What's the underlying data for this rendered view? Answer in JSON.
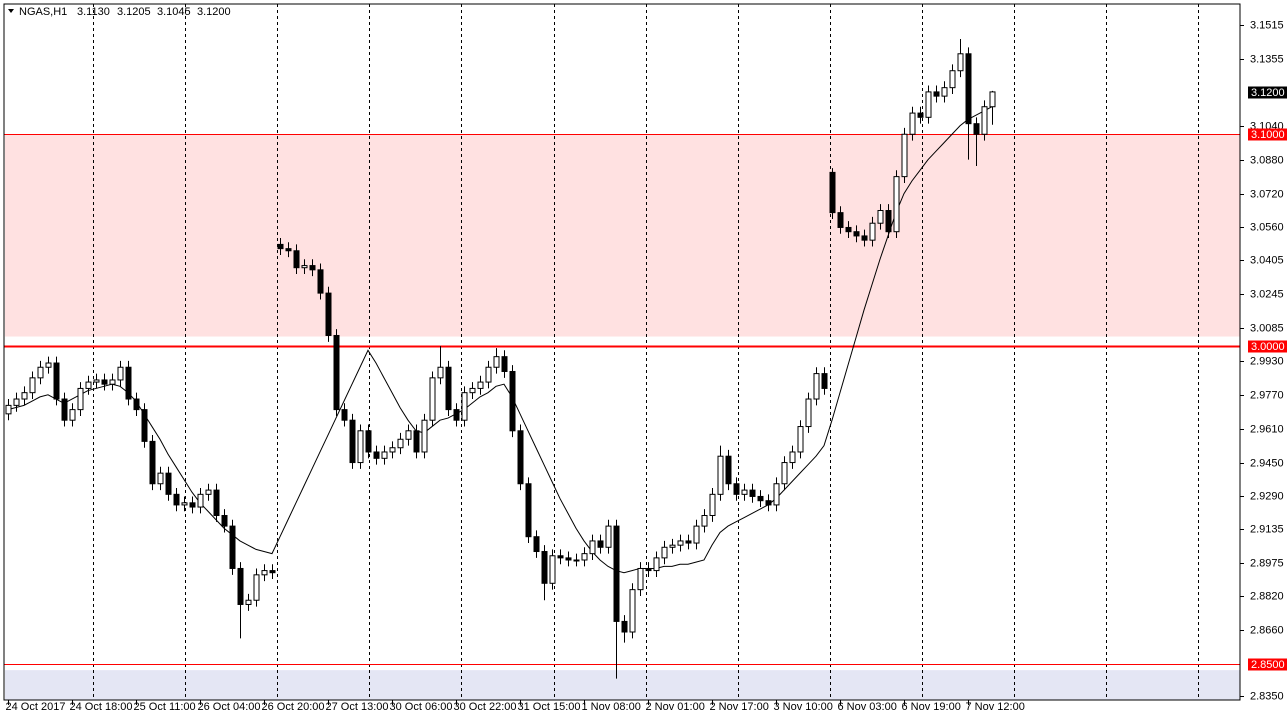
{
  "chart_data": {
    "type": "candlestick",
    "header": {
      "name": "NGAS,H1",
      "values": [
        3.113,
        3.1205,
        3.1045,
        3.12
      ],
      "value_labels": [
        "3.1130",
        "3.1205",
        "3.1045",
        "3.1200"
      ]
    },
    "categories": [
      "24 Oct 2017",
      null,
      null,
      null,
      null,
      null,
      null,
      null,
      "24 Oct 18:00",
      null,
      null,
      null,
      null,
      null,
      null,
      null,
      "25 Oct 11:00",
      null,
      null,
      null,
      null,
      null,
      null,
      null,
      "26 Oct 04:00",
      null,
      null,
      null,
      null,
      null,
      null,
      null,
      "26 Oct 20:00",
      null,
      null,
      null,
      null,
      null,
      null,
      null,
      "27 Oct 13:00",
      null,
      null,
      null,
      null,
      null,
      null,
      null,
      "30 Oct 06:00",
      null,
      null,
      null,
      null,
      null,
      null,
      null,
      "30 Oct 22:00",
      null,
      null,
      null,
      null,
      null,
      null,
      null,
      "31 Oct 15:00",
      null,
      null,
      null,
      null,
      null,
      null,
      null,
      "1 Nov 08:00",
      null,
      null,
      null,
      null,
      null,
      null,
      null,
      "2 Nov 01:00",
      null,
      null,
      null,
      null,
      null,
      null,
      null,
      "2 Nov 17:00",
      null,
      null,
      null,
      null,
      null,
      null,
      null,
      "3 Nov 10:00",
      null,
      null,
      null,
      null,
      null,
      null,
      null,
      "6 Nov 03:00",
      null,
      null,
      null,
      null,
      null,
      null,
      null,
      "6 Nov 19:00",
      null,
      null,
      null,
      null,
      null,
      null,
      null,
      "7 Nov 12:00",
      null,
      null,
      null
    ],
    "open": [
      2.968,
      2.972,
      2.975,
      2.978,
      2.985,
      2.99,
      2.992,
      2.975,
      2.965,
      2.97,
      2.98,
      2.983,
      2.984,
      2.982,
      2.984,
      2.99,
      2.975,
      2.97,
      2.955,
      2.935,
      2.94,
      2.93,
      2.925,
      2.926,
      2.924,
      2.93,
      2.932,
      2.92,
      2.915,
      2.895,
      2.878,
      2.88,
      2.892,
      2.894,
      3.048,
      3.046,
      3.045,
      3.037,
      3.038,
      3.036,
      3.025,
      3.005,
      2.97,
      2.965,
      2.945,
      2.96,
      2.95,
      2.947,
      2.95,
      2.952,
      2.956,
      2.96,
      2.95,
      2.965,
      2.985,
      2.99,
      2.97,
      2.965,
      2.978,
      2.98,
      2.983,
      2.99,
      2.995,
      2.988,
      2.96,
      2.935,
      2.91,
      2.903,
      2.888,
      2.901,
      2.9,
      2.899,
      2.899,
      2.902,
      2.908,
      2.905,
      2.915,
      2.87,
      2.865,
      2.885,
      2.895,
      2.894,
      2.9,
      2.905,
      2.906,
      2.908,
      2.907,
      2.915,
      2.92,
      2.93,
      2.948,
      2.935,
      2.93,
      2.932,
      2.929,
      2.927,
      2.925,
      2.935,
      2.945,
      2.95,
      2.962,
      2.975,
      2.987,
      3.082,
      3.063,
      3.056,
      3.054,
      3.052,
      3.05,
      3.058,
      3.064,
      3.054,
      3.08,
      3.1,
      3.11,
      3.108,
      3.12,
      3.118,
      3.122,
      3.13,
      3.138,
      3.105,
      3.1,
      3.113
    ],
    "high": [
      2.975,
      2.978,
      2.981,
      2.988,
      2.993,
      2.995,
      2.995,
      2.978,
      2.973,
      2.983,
      2.986,
      2.987,
      2.987,
      2.987,
      2.993,
      2.993,
      2.978,
      2.973,
      2.958,
      2.943,
      2.943,
      2.933,
      2.929,
      2.929,
      2.933,
      2.935,
      2.935,
      2.923,
      2.918,
      2.898,
      2.883,
      2.895,
      2.897,
      2.897,
      3.051,
      3.049,
      3.048,
      3.041,
      3.041,
      3.039,
      3.028,
      3.008,
      2.973,
      2.968,
      2.963,
      2.963,
      2.953,
      2.953,
      2.955,
      2.959,
      2.963,
      2.963,
      2.968,
      2.988,
      3.0,
      2.993,
      2.973,
      2.981,
      2.983,
      2.986,
      2.993,
      2.999,
      2.998,
      2.991,
      2.963,
      2.938,
      2.913,
      2.906,
      2.904,
      2.904,
      2.903,
      2.902,
      2.905,
      2.911,
      2.911,
      2.918,
      2.918,
      2.873,
      2.888,
      2.898,
      2.898,
      2.903,
      2.908,
      2.909,
      2.911,
      2.911,
      2.918,
      2.923,
      2.933,
      2.953,
      2.951,
      2.938,
      2.935,
      2.935,
      2.932,
      2.93,
      2.938,
      2.948,
      2.953,
      2.965,
      2.978,
      2.99,
      2.99,
      3.084,
      3.066,
      3.059,
      3.057,
      3.055,
      3.061,
      3.067,
      3.067,
      3.083,
      3.103,
      3.113,
      3.113,
      3.123,
      3.123,
      3.125,
      3.133,
      3.145,
      3.141,
      3.108,
      3.116,
      3.1205
    ],
    "low": [
      2.965,
      2.969,
      2.972,
      2.975,
      2.982,
      2.987,
      2.972,
      2.962,
      2.962,
      2.967,
      2.977,
      2.98,
      2.979,
      2.979,
      2.981,
      2.972,
      2.967,
      2.952,
      2.932,
      2.932,
      2.927,
      2.922,
      2.922,
      2.921,
      2.921,
      2.927,
      2.917,
      2.912,
      2.892,
      2.862,
      2.875,
      2.877,
      2.889,
      2.89,
      3.043,
      3.042,
      3.034,
      3.034,
      3.033,
      3.022,
      3.002,
      2.967,
      2.962,
      2.942,
      2.942,
      2.947,
      2.944,
      2.944,
      2.947,
      2.949,
      2.953,
      2.947,
      2.947,
      2.962,
      2.982,
      2.967,
      2.962,
      2.962,
      2.975,
      2.977,
      2.98,
      2.987,
      2.985,
      2.957,
      2.932,
      2.907,
      2.9,
      2.88,
      2.885,
      2.897,
      2.896,
      2.896,
      2.896,
      2.899,
      2.902,
      2.902,
      2.843,
      2.86,
      2.862,
      2.882,
      2.891,
      2.891,
      2.897,
      2.902,
      2.903,
      2.904,
      2.904,
      2.912,
      2.917,
      2.927,
      2.932,
      2.927,
      2.927,
      2.926,
      2.924,
      2.922,
      2.922,
      2.932,
      2.942,
      2.947,
      2.959,
      2.972,
      2.977,
      3.06,
      3.053,
      3.051,
      3.049,
      3.047,
      3.047,
      3.055,
      3.051,
      3.051,
      3.077,
      3.097,
      3.105,
      3.105,
      3.115,
      3.115,
      3.119,
      3.127,
      3.088,
      3.085,
      3.097,
      3.1045
    ],
    "close": [
      2.972,
      2.975,
      2.978,
      2.985,
      2.99,
      2.992,
      2.975,
      2.965,
      2.97,
      2.98,
      2.983,
      2.984,
      2.982,
      2.984,
      2.99,
      2.975,
      2.97,
      2.955,
      2.935,
      2.94,
      2.93,
      2.925,
      2.926,
      2.924,
      2.93,
      2.932,
      2.92,
      2.915,
      2.895,
      2.878,
      2.88,
      2.892,
      2.894,
      2.893,
      3.046,
      3.045,
      3.037,
      3.038,
      3.036,
      3.025,
      3.005,
      2.97,
      2.965,
      2.945,
      2.96,
      2.95,
      2.947,
      2.95,
      2.952,
      2.956,
      2.96,
      2.95,
      2.965,
      2.985,
      2.99,
      2.97,
      2.965,
      2.978,
      2.98,
      2.983,
      2.99,
      2.995,
      2.988,
      2.96,
      2.935,
      2.91,
      2.903,
      2.888,
      2.901,
      2.9,
      2.899,
      2.899,
      2.902,
      2.908,
      2.905,
      2.915,
      2.87,
      2.865,
      2.885,
      2.895,
      2.894,
      2.9,
      2.905,
      2.906,
      2.908,
      2.907,
      2.915,
      2.92,
      2.93,
      2.948,
      2.935,
      2.93,
      2.932,
      2.929,
      2.927,
      2.925,
      2.935,
      2.945,
      2.95,
      2.962,
      2.975,
      2.987,
      2.98,
      3.063,
      3.056,
      3.054,
      3.052,
      3.05,
      3.058,
      3.064,
      3.054,
      3.08,
      3.1,
      3.11,
      3.108,
      3.12,
      3.118,
      3.122,
      3.13,
      3.138,
      3.105,
      3.1,
      3.113,
      3.12
    ],
    "ma": [
      2.97,
      2.971,
      2.972,
      2.974,
      2.976,
      2.977,
      2.975,
      2.973,
      2.975,
      2.977,
      2.979,
      2.98,
      2.981,
      2.982,
      2.981,
      2.978,
      2.974,
      2.968,
      2.962,
      2.956,
      2.949,
      2.943,
      2.937,
      2.931,
      2.926,
      2.922,
      2.918,
      2.914,
      2.911,
      2.908,
      2.906,
      2.904,
      2.903,
      2.902,
      2.91,
      2.918,
      2.926,
      2.934,
      2.942,
      2.95,
      2.958,
      2.966,
      2.974,
      2.982,
      2.99,
      2.998,
      2.992,
      2.985,
      2.978,
      2.971,
      2.965,
      2.96,
      2.959,
      2.962,
      2.965,
      2.966,
      2.968,
      2.97,
      2.973,
      2.976,
      2.978,
      2.981,
      2.982,
      2.976,
      2.968,
      2.96,
      2.952,
      2.944,
      2.936,
      2.928,
      2.921,
      2.914,
      2.908,
      2.903,
      2.899,
      2.896,
      2.894,
      2.893,
      2.894,
      2.895,
      2.895,
      2.895,
      2.896,
      2.896,
      2.897,
      2.897,
      2.898,
      2.899,
      2.906,
      2.912,
      2.915,
      2.917,
      2.919,
      2.921,
      2.923,
      2.925,
      2.928,
      2.932,
      2.936,
      2.94,
      2.944,
      2.948,
      2.953,
      2.965,
      2.978,
      2.991,
      3.004,
      3.017,
      3.029,
      3.041,
      3.052,
      3.063,
      3.072,
      3.078,
      3.083,
      3.088,
      3.092,
      3.096,
      3.1,
      3.104,
      3.107,
      3.109,
      3.111,
      3.113
    ],
    "ylim": [
      2.8329,
      3.1615
    ],
    "yticks": [
      {
        "value": 3.1515,
        "label": "3.1515"
      },
      {
        "value": 3.1355,
        "label": "3.1355"
      },
      {
        "value": 3.104,
        "label": "3.1040"
      },
      {
        "value": 3.088,
        "label": "3.0880"
      },
      {
        "value": 3.072,
        "label": "3.0720"
      },
      {
        "value": 3.056,
        "label": "3.0560"
      },
      {
        "value": 3.0405,
        "label": "3.0405"
      },
      {
        "value": 3.0245,
        "label": "3.0245"
      },
      {
        "value": 3.0085,
        "label": "3.0085"
      },
      {
        "value": 2.993,
        "label": "2.9930"
      },
      {
        "value": 2.977,
        "label": "2.9770"
      },
      {
        "value": 2.961,
        "label": "2.9610"
      },
      {
        "value": 2.945,
        "label": "2.9450"
      },
      {
        "value": 2.929,
        "label": "2.9290"
      },
      {
        "value": 2.9135,
        "label": "2.9135"
      },
      {
        "value": 2.8975,
        "label": "2.8975"
      },
      {
        "value": 2.882,
        "label": "2.8820"
      },
      {
        "value": 2.866,
        "label": "2.8660"
      },
      {
        "value": 2.835,
        "label": "2.8350"
      }
    ],
    "levels": [
      {
        "value": 3.1,
        "label": "3.1000",
        "color": "#ff0000"
      },
      {
        "value": 3.0,
        "label": "3.0000",
        "color": "#ff0000"
      },
      {
        "value": 2.85,
        "label": "2.8500",
        "color": "#ff0000"
      }
    ],
    "current_price": {
      "value": 3.12,
      "label": "3.1200",
      "color": "#000000"
    },
    "zones": [
      {
        "from": 3.1,
        "to": 3.0045,
        "color": "#ffe1e1"
      },
      {
        "from": 2.847,
        "to": 2.8329,
        "color": "#e4e6f4"
      }
    ],
    "up_color": "#ffffff",
    "down_color": "#000000",
    "ma_color": "#000000"
  }
}
